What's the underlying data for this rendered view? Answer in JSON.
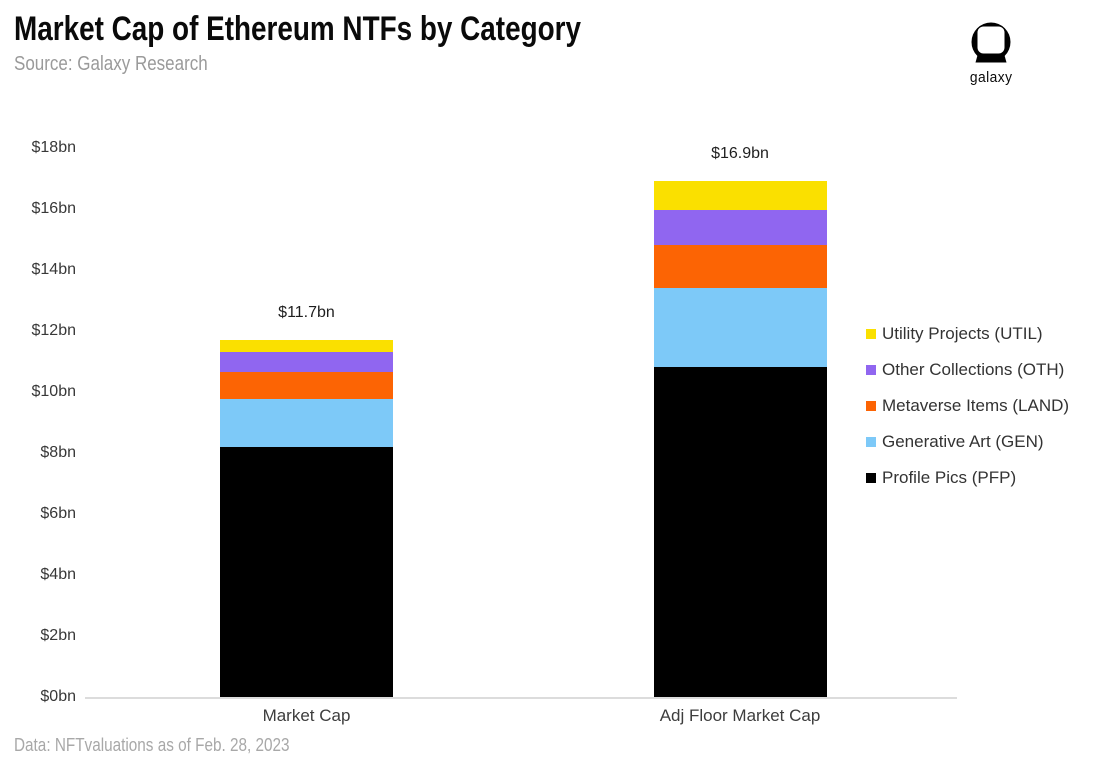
{
  "header": {
    "title": "Market Cap of Ethereum NTFs by Category",
    "subtitle": "Source: Galaxy Research",
    "logo_text": "galaxy"
  },
  "footer": {
    "note": "Data: NFTvaluations as of Feb. 28, 2023"
  },
  "chart_data": {
    "type": "bar",
    "stacked": true,
    "title": "Market Cap of Ethereum NTFs by Category",
    "categories": [
      "Market Cap",
      "Adj Floor Market Cap"
    ],
    "series": [
      {
        "name": "Profile Pics (PFP)",
        "code": "PFP",
        "color": "#000000",
        "values": [
          8.2,
          10.8
        ]
      },
      {
        "name": "Generative Art (GEN)",
        "code": "GEN",
        "color": "#7DC9F8",
        "values": [
          1.55,
          2.6
        ]
      },
      {
        "name": "Metaverse Items (LAND)",
        "code": "LAND",
        "color": "#FC6404",
        "values": [
          0.9,
          1.4
        ]
      },
      {
        "name": "Other Collections (OTH)",
        "code": "OTH",
        "color": "#9066F0",
        "values": [
          0.65,
          1.15
        ]
      },
      {
        "name": "Utility Projects (UTIL)",
        "code": "UTIL",
        "color": "#FAE000",
        "values": [
          0.4,
          0.95
        ]
      }
    ],
    "data_labels": [
      "$11.7bn",
      "$16.9bn"
    ],
    "y_ticks": [
      "$18bn",
      "$16bn",
      "$14bn",
      "$12bn",
      "$10bn",
      "$8bn",
      "$6bn",
      "$4bn",
      "$2bn",
      "$0bn"
    ],
    "ylim": [
      0,
      18
    ],
    "xlabel": "",
    "ylabel": "",
    "grid": false,
    "legend_position": "right",
    "legend_top_to_bottom": [
      "Utility Projects (UTIL)",
      "Other Collections (OTH)",
      "Metaverse Items (LAND)",
      "Generative Art (GEN)",
      "Profile Pics (PFP)"
    ]
  }
}
